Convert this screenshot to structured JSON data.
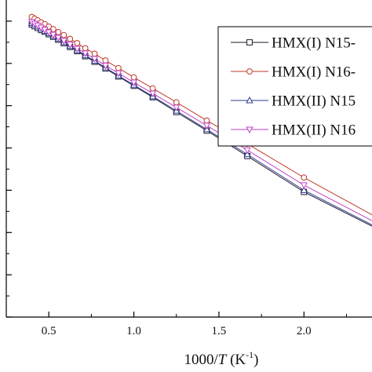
{
  "chart_data": {
    "type": "line",
    "title": "",
    "xlabel": {
      "prefix": "1000/",
      "italic": "T",
      "suffix": " (K",
      "sup": "-1",
      "end": ")"
    },
    "ylabel": "",
    "xlim": [
      0.25,
      2.4
    ],
    "ylim": [
      0,
      7.5
    ],
    "x_ticks": [
      0.5,
      1.0,
      1.5,
      2.0
    ],
    "x_tick_labels": [
      "0.5",
      "1.0",
      "1.5",
      "2.0"
    ],
    "y_ticks": [
      0,
      1,
      2,
      3,
      4,
      5,
      6,
      7
    ],
    "y_tick_labels": [],
    "grid": false,
    "legend_position": "top-right",
    "x": [
      0.4,
      0.4167,
      0.4348,
      0.4545,
      0.4762,
      0.5,
      0.5263,
      0.5556,
      0.5882,
      0.625,
      0.6667,
      0.7143,
      0.7692,
      0.8333,
      0.9091,
      1.0,
      1.1111,
      1.25,
      1.4286,
      1.6667,
      2.0
    ],
    "series": [
      {
        "name": "HMX(I) N15-",
        "color": "#1a1a2e",
        "marker": "square",
        "y": [
          6.92,
          6.88,
          6.84,
          6.79,
          6.75,
          6.69,
          6.63,
          6.56,
          6.48,
          6.39,
          6.29,
          6.17,
          6.04,
          5.88,
          5.69,
          5.47,
          5.2,
          4.85,
          4.41,
          3.81,
          2.96
        ],
        "y_end": 2.15
      },
      {
        "name": "HMX(I) N16-",
        "color": "#c0392b",
        "marker": "circle",
        "y": [
          7.1,
          7.06,
          7.02,
          6.97,
          6.93,
          6.87,
          6.81,
          6.74,
          6.67,
          6.58,
          6.48,
          6.36,
          6.23,
          6.07,
          5.89,
          5.67,
          5.41,
          5.08,
          4.65,
          4.1,
          3.3
        ],
        "y_end": 2.42
      },
      {
        "name": "HMX(II) N15",
        "color": "#2e3a8c",
        "marker": "triangle-up",
        "y": [
          6.95,
          6.91,
          6.87,
          6.82,
          6.77,
          6.71,
          6.65,
          6.58,
          6.5,
          6.41,
          6.31,
          6.19,
          6.06,
          5.9,
          5.71,
          5.49,
          5.22,
          4.88,
          4.44,
          3.85,
          3.0
        ],
        "y_end": 2.18
      },
      {
        "name": "HMX(II) N16",
        "color": "#c040c8",
        "marker": "triangle-down",
        "y": [
          6.98,
          6.94,
          6.9,
          6.85,
          6.8,
          6.74,
          6.68,
          6.61,
          6.54,
          6.45,
          6.35,
          6.24,
          6.11,
          5.95,
          5.77,
          5.55,
          5.29,
          4.96,
          4.53,
          3.95,
          3.12
        ],
        "y_end": 2.28
      }
    ]
  }
}
